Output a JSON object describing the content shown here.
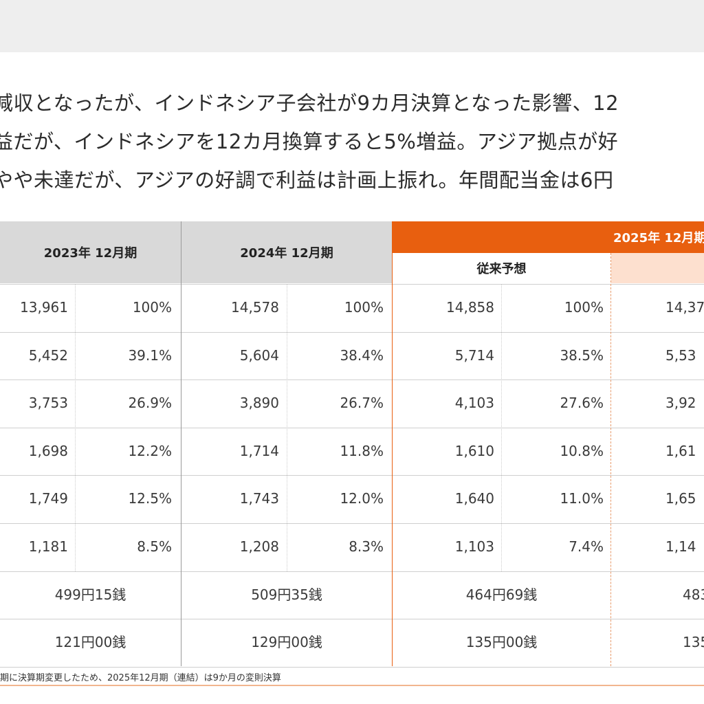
{
  "intro": {
    "lines": [
      "減収となったが、インドネシア子会社が9カ月決算となった影響、12",
      "益だが、インドネシアを12カ月換算すると5%増益。アジア拠点が好",
      "やや未達だが、アジアの好調で利益は計画上振れ。年間配当金は6円"
    ]
  },
  "table": {
    "headers": {
      "fy2023": "2023年 12月期",
      "fy2024": "2024年 12月期",
      "fy2025": "2025年 12月期",
      "forecast": "従来予想"
    },
    "rows": [
      {
        "fy2023": [
          "13,961",
          "100%"
        ],
        "fy2024": [
          "14,578",
          "100%"
        ],
        "forecast": [
          "14,858",
          "100%"
        ],
        "fy2025": "14,37"
      },
      {
        "fy2023": [
          "5,452",
          "39.1%"
        ],
        "fy2024": [
          "5,604",
          "38.4%"
        ],
        "forecast": [
          "5,714",
          "38.5%"
        ],
        "fy2025": "5,53"
      },
      {
        "fy2023": [
          "3,753",
          "26.9%"
        ],
        "fy2024": [
          "3,890",
          "26.7%"
        ],
        "forecast": [
          "4,103",
          "27.6%"
        ],
        "fy2025": "3,92"
      },
      {
        "fy2023": [
          "1,698",
          "12.2%"
        ],
        "fy2024": [
          "1,714",
          "11.8%"
        ],
        "forecast": [
          "1,610",
          "10.8%"
        ],
        "fy2025": "1,61"
      },
      {
        "fy2023": [
          "1,749",
          "12.5%"
        ],
        "fy2024": [
          "1,743",
          "12.0%"
        ],
        "forecast": [
          "1,640",
          "11.0%"
        ],
        "fy2025": "1,65"
      },
      {
        "fy2023": [
          "1,181",
          "8.5%"
        ],
        "fy2024": [
          "1,208",
          "8.3%"
        ],
        "forecast": [
          "1,103",
          "7.4%"
        ],
        "fy2025": "1,14"
      }
    ],
    "merged_rows": [
      {
        "fy2023": "499円15銭",
        "fy2024": "509円35銭",
        "forecast": "464円69銭",
        "fy2025": "483"
      },
      {
        "fy2023": "121円00銭",
        "fy2024": "129円00銭",
        "forecast": "135円00銭",
        "fy2025": "135"
      }
    ]
  },
  "footnote": "期に決算期変更したため、2025年12月期（連結）は9か月の変則決算",
  "colors": {
    "accent_orange": "#e85f0f",
    "peach": "#fde0cf",
    "header_grey": "#d9d9d9"
  }
}
